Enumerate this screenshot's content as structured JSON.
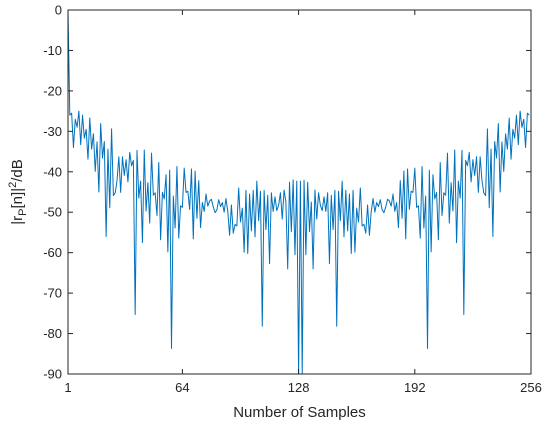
{
  "chart_data": {
    "type": "line",
    "xlabel": "Number of Samples",
    "ylabel": "|r_P[n]|^2/dB",
    "ylabel_parts": {
      "a": "|r",
      "sub": "P",
      "b": "[n]|",
      "sup": "2",
      "c": "/dB"
    },
    "xlim": [
      1,
      256
    ],
    "ylim": [
      -90,
      0
    ],
    "grid": false,
    "line_color": "#0072BD",
    "xticks": [
      1,
      64,
      128,
      192,
      256
    ],
    "xtick_labels": [
      "1",
      "64",
      "128",
      "192",
      "256"
    ],
    "yticks": [
      0,
      -10,
      -20,
      -30,
      -40,
      -50,
      -60,
      -70,
      -80,
      -90
    ],
    "ytick_labels": [
      "0",
      "-10",
      "-20",
      "-30",
      "-40",
      "-50",
      "-60",
      "-70",
      "-80",
      "-90"
    ],
    "series": [
      {
        "x_start": 1,
        "x_step": 1,
        "values": [
          0,
          -26,
          -25.5,
          -34,
          -27,
          -29,
          -25,
          -33.3,
          -26,
          -31.7,
          -29.5,
          -36.9,
          -26.7,
          -34.4,
          -30.6,
          -39.9,
          -32.6,
          -45,
          -28.1,
          -36.6,
          -32.5,
          -56,
          -34.4,
          -48.9,
          -29.4,
          -45.9,
          -45.2,
          -42.2,
          -36.3,
          -45.1,
          -36.3,
          -40.9,
          -37,
          -42.5,
          -35.2,
          -38.5,
          -37.2,
          -75.3,
          -34.7,
          -46.5,
          -42.3,
          -57.5,
          -34.6,
          -49.7,
          -42.7,
          -52.7,
          -35.4,
          -45.8,
          -45.2,
          -50.8,
          -37.7,
          -56.8,
          -45.1,
          -46.7,
          -40.7,
          -59.8,
          -39.6,
          -83.7,
          -46,
          -53.9,
          -38.7,
          -56.4,
          -48.4,
          -48.8,
          -39.1,
          -45.1,
          -44.8,
          -49.3,
          -39.3,
          -56.6,
          -39.8,
          -51.5,
          -42.2,
          -53.8,
          -47.6,
          -49.8,
          -45.5,
          -48.5,
          -47.2,
          -46.8,
          -48.7,
          -50.1,
          -49.4,
          -46.9,
          -48.6,
          -47.6,
          -50,
          -46.6,
          -49.8,
          -55.7,
          -48.2,
          -55.2,
          -53,
          -53.4,
          -44,
          -52.4,
          -49,
          -59.9,
          -44.6,
          -60.2,
          -45.5,
          -54.6,
          -44.6,
          -56.1,
          -42.3,
          -52.1,
          -44.8,
          -78.2,
          -44.6,
          -54.3,
          -45.8,
          -62.7,
          -45.2,
          -49.8,
          -46.2,
          -49.6,
          -48.3,
          -45.2,
          -51.7,
          -44.5,
          -47.5,
          -64,
          -42.6,
          -54.8,
          -42,
          -60.5,
          -42.3,
          -90,
          -42.3,
          -90,
          -42.1,
          -60.5,
          -42.6,
          -54.8,
          -47.5,
          -64,
          -44.5,
          -51.7,
          -45.2,
          -48.3,
          -49.6,
          -46.2,
          -49.8,
          -45.2,
          -62.7,
          -45.8,
          -54.3,
          -44.6,
          -78.2,
          -44.8,
          -52.1,
          -42.3,
          -56.1,
          -44.6,
          -54.6,
          -45.5,
          -60.2,
          -44.6,
          -59.9,
          -49,
          -52.4,
          -44,
          -53.4,
          -53,
          -55.2,
          -48.2,
          -55.7,
          -49.8,
          -46.6,
          -50,
          -47.6,
          -48.6,
          -46.9,
          -49.4,
          -50.1,
          -48.7,
          -46.8,
          -47.2,
          -48.5,
          -45.5,
          -49.8,
          -47.6,
          -53.8,
          -42.2,
          -51.5,
          -39.8,
          -56.6,
          -39.3,
          -49.3,
          -44.8,
          -45.1,
          -39.1,
          -48.8,
          -48.4,
          -56.4,
          -38.7,
          -53.9,
          -46,
          -83.7,
          -39.6,
          -59.8,
          -40.7,
          -46.7,
          -45.1,
          -56.8,
          -37.7,
          -50.8,
          -45.2,
          -45.8,
          -35.4,
          -52.7,
          -42.7,
          -49.7,
          -34.6,
          -57.5,
          -42.3,
          -46.5,
          -34.7,
          -75.3,
          -37.2,
          -38.5,
          -35.2,
          -42.5,
          -37,
          -40.9,
          -36.3,
          -45.1,
          -36.3,
          -42.2,
          -45.2,
          -45.9,
          -29.4,
          -48.9,
          -34.4,
          -56,
          -32.5,
          -36.6,
          -28.1,
          -45,
          -32.6,
          -39.9,
          -30.6,
          -34.4,
          -26.7,
          -36.9,
          -29.5,
          -31.7,
          -26,
          -33.3,
          -25,
          -29,
          -27,
          -34,
          -25.5,
          -26
        ]
      }
    ]
  }
}
